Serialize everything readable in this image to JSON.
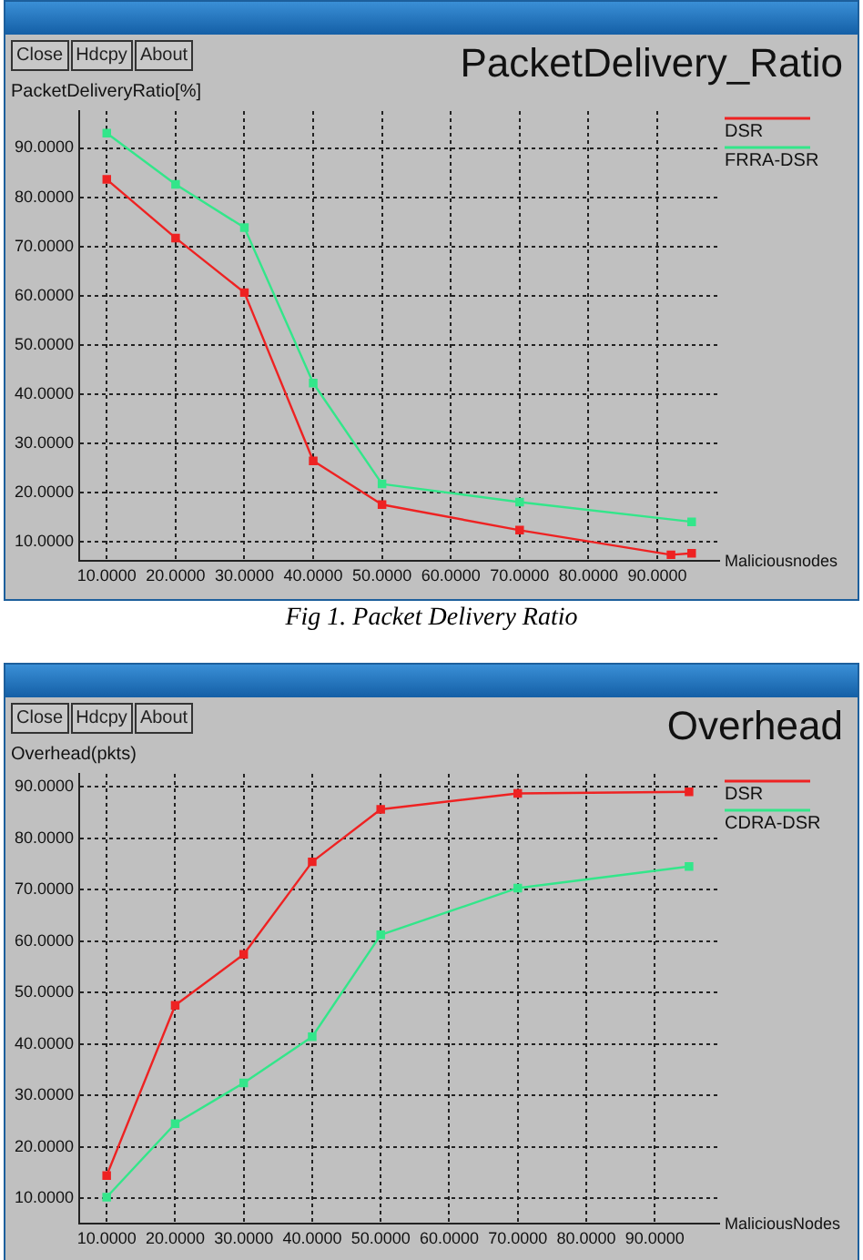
{
  "chart_data": [
    {
      "type": "line",
      "title": "PacketDelivery_Ratio",
      "ylabel": "PacketDeliveryRatio[%]",
      "xlabel": "Maliciousnodes",
      "annotations": [
        "Close",
        "Hdcpy",
        "About",
        "Fig 1. Packet Delivery Ratio"
      ],
      "xlim": [
        6,
        99
      ],
      "ylim": [
        6,
        97.5
      ],
      "xticks": [
        {
          "value": 10,
          "label": "10.0000"
        },
        {
          "value": 20,
          "label": "20.0000"
        },
        {
          "value": 30,
          "label": "30.0000"
        },
        {
          "value": 40,
          "label": "40.0000"
        },
        {
          "value": 50,
          "label": "50.0000"
        },
        {
          "value": 60,
          "label": "60.0000"
        },
        {
          "value": 70,
          "label": "70.0000"
        },
        {
          "value": 80,
          "label": "80.0000"
        },
        {
          "value": 90,
          "label": "90.0000"
        }
      ],
      "yticks": [
        {
          "value": 10,
          "label": "10.0000"
        },
        {
          "value": 20,
          "label": "20.0000"
        },
        {
          "value": 30,
          "label": "30.0000"
        },
        {
          "value": 40,
          "label": "40.0000"
        },
        {
          "value": 50,
          "label": "50.0000"
        },
        {
          "value": 60,
          "label": "60.0000"
        },
        {
          "value": 70,
          "label": "70.0000"
        },
        {
          "value": 80,
          "label": "80.0000"
        },
        {
          "value": 90,
          "label": "90.0000"
        }
      ],
      "series": [
        {
          "name": "DSR",
          "color": "#ee2222",
          "x": [
            10,
            20,
            30,
            40,
            50,
            70,
            92,
            95
          ],
          "values": [
            83.6,
            71.7,
            60.6,
            26.4,
            17.5,
            12.3,
            7.3,
            7.6
          ]
        },
        {
          "name": "FRRA-DSR",
          "color": "#33e68a",
          "x": [
            10,
            20,
            30,
            40,
            50,
            70,
            95
          ],
          "values": [
            93,
            82.6,
            73.8,
            42.2,
            21.7,
            18,
            14
          ]
        }
      ],
      "grid": true,
      "legend": "right",
      "marker": "square",
      "line_style": "solid"
    },
    {
      "type": "line",
      "title": "Overhead",
      "ylabel": "Overhead(pkts)",
      "xlabel": "MaliciousNodes",
      "annotations": [
        "Close",
        "Hdcpy",
        "About"
      ],
      "xlim": [
        6,
        99.4
      ],
      "ylim": [
        5,
        92.5
      ],
      "xticks": [
        {
          "value": 10,
          "label": "10.0000"
        },
        {
          "value": 20,
          "label": "20.0000"
        },
        {
          "value": 30,
          "label": "30.0000"
        },
        {
          "value": 40,
          "label": "40.0000"
        },
        {
          "value": 50,
          "label": "50.0000"
        },
        {
          "value": 60,
          "label": "60.0000"
        },
        {
          "value": 70,
          "label": "70.0000"
        },
        {
          "value": 80,
          "label": "80.0000"
        },
        {
          "value": 90,
          "label": "90.0000"
        }
      ],
      "yticks": [
        {
          "value": 10,
          "label": "10.0000"
        },
        {
          "value": 20,
          "label": "20.0000"
        },
        {
          "value": 30,
          "label": "30.0000"
        },
        {
          "value": 40,
          "label": "40.0000"
        },
        {
          "value": 50,
          "label": "50.0000"
        },
        {
          "value": 60,
          "label": "60.0000"
        },
        {
          "value": 70,
          "label": "70.0000"
        },
        {
          "value": 80,
          "label": "80.0000"
        },
        {
          "value": 90,
          "label": "90.0000"
        }
      ],
      "series": [
        {
          "name": "DSR",
          "color": "#ee2222",
          "x": [
            10,
            20,
            30,
            40,
            50,
            70,
            95
          ],
          "values": [
            14.4,
            47.5,
            57.4,
            75.4,
            85.6,
            88.7,
            89
          ]
        },
        {
          "name": "CDRA-DSR",
          "color": "#33e68a",
          "x": [
            10,
            20,
            30,
            40,
            50,
            70,
            95
          ],
          "values": [
            10.2,
            24.5,
            32.4,
            41.4,
            61.2,
            70.3,
            74.5
          ]
        }
      ],
      "grid": true,
      "legend": "right",
      "marker": "square",
      "line_style": "solid"
    }
  ]
}
